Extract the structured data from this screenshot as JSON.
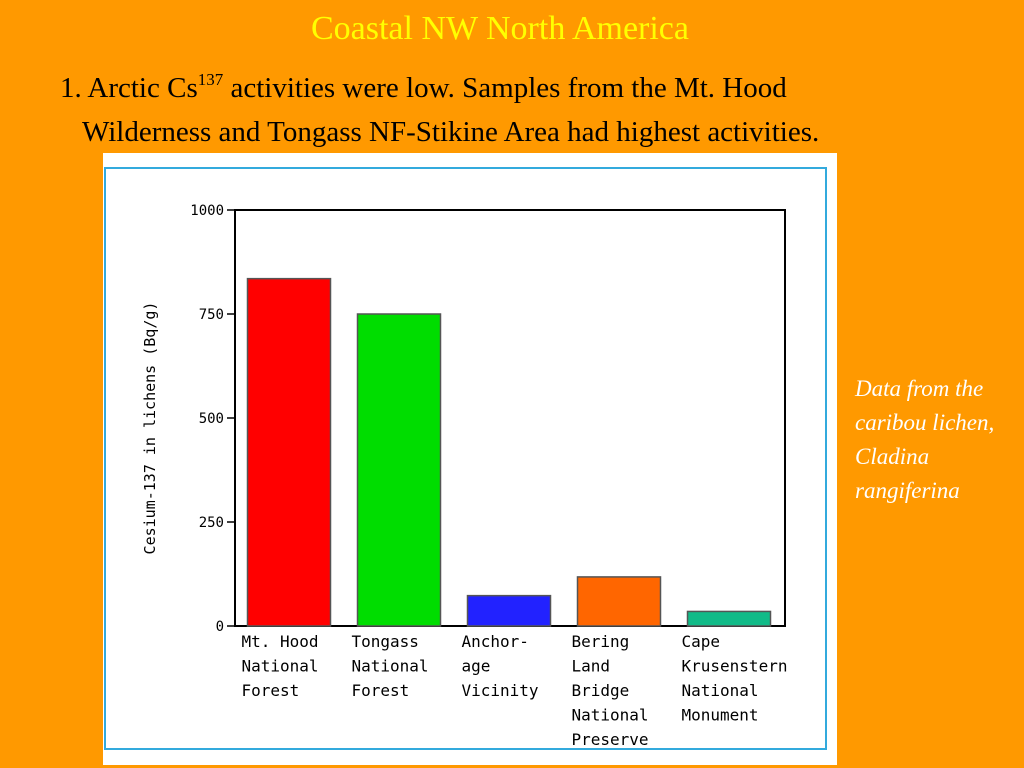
{
  "slide": {
    "title": "Coastal NW North America",
    "point_prefix": "1.  Arctic Cs",
    "point_superscript": "137",
    "point_line1_suffix": " activities were low.  Samples from the Mt. Hood",
    "point_line2": "Wilderness and Tongass NF-Stikine Area  had highest activities.",
    "side_note": "Data from the caribou lichen, Cladina rangiferina",
    "colors": {
      "background": "#FF9900",
      "title": "#FFFF00",
      "note": "#FFFFFF",
      "chart_frame": "#33AADD"
    }
  },
  "chart_data": {
    "type": "bar",
    "title": "",
    "xlabel": "",
    "ylabel": "Cesium-137 in lichens  (Bq/g)",
    "ylim": [
      0,
      1000
    ],
    "yticks": [
      "0",
      "250",
      "500",
      "750",
      "1000"
    ],
    "ytick_values": [
      0,
      250,
      500,
      750,
      1000
    ],
    "grid": false,
    "categories": [
      [
        "Mt. Hood",
        "National",
        "Forest"
      ],
      [
        "Tongass",
        "National",
        "Forest"
      ],
      [
        "Anchor-",
        "age",
        "Vicinity"
      ],
      [
        "Bering",
        "Land",
        "Bridge",
        "National",
        "Preserve"
      ],
      [
        "Cape",
        "Krusenstern",
        "National",
        "Monument"
      ]
    ],
    "values": [
      835,
      750,
      73,
      118,
      35
    ],
    "bar_colors": [
      "#FF0000",
      "#00DD00",
      "#2222FF",
      "#FF6600",
      "#11BB88"
    ]
  }
}
